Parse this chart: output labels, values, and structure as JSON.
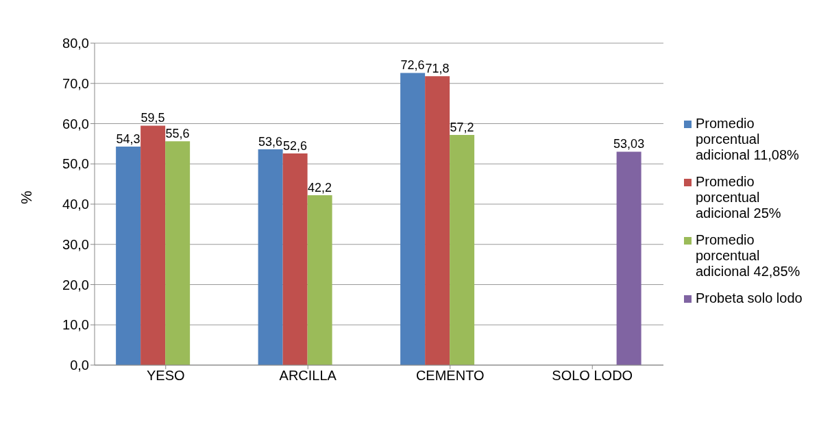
{
  "chart_data": {
    "type": "bar",
    "ylabel": "%",
    "categories": [
      "YESO",
      "ARCILLA",
      "CEMENTO",
      "SOLO LODO"
    ],
    "series": [
      {
        "name": "Promedio porcentual adicional 11,08%",
        "color": "#4f81bd",
        "values": [
          54.3,
          53.6,
          72.6,
          null
        ],
        "value_labels": [
          "54,3",
          "53,6",
          "72,6",
          null
        ]
      },
      {
        "name": "Promedio porcentual adicional 25%",
        "color": "#c0504d",
        "values": [
          59.5,
          52.6,
          71.8,
          null
        ],
        "value_labels": [
          "59,5",
          "52,6",
          "71,8",
          null
        ]
      },
      {
        "name": "Promedio porcentual adicional 42,85%",
        "color": "#9bbb59",
        "values": [
          55.6,
          42.2,
          57.2,
          null
        ],
        "value_labels": [
          "55,6",
          "42,2",
          "57,2",
          null
        ]
      },
      {
        "name": "Probeta solo lodo",
        "color": "#8064a2",
        "values": [
          null,
          null,
          null,
          53.03
        ],
        "value_labels": [
          null,
          null,
          null,
          "53,03"
        ]
      }
    ],
    "ylim": [
      0,
      80
    ],
    "yticks": [
      {
        "value": 0,
        "label": "0,0"
      },
      {
        "value": 10,
        "label": "10,0"
      },
      {
        "value": 20,
        "label": "20,0"
      },
      {
        "value": 30,
        "label": "30,0"
      },
      {
        "value": 40,
        "label": "40,0"
      },
      {
        "value": 50,
        "label": "50,0"
      },
      {
        "value": 60,
        "label": "60,0"
      },
      {
        "value": 70,
        "label": "70,0"
      },
      {
        "value": 80,
        "label": "80,0"
      }
    ],
    "grid": "y",
    "legend": "right"
  }
}
